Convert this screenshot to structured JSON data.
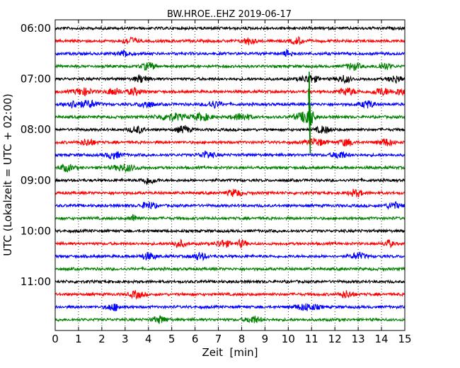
{
  "chart_data": {
    "type": "line",
    "title": "BW.HROE..EHZ 2019-06-17",
    "xlabel": "Zeit  [min]",
    "ylabel": "UTC (Lokalzeit = UTC + 02:00)",
    "xlim": [
      0,
      15
    ],
    "x_ticks": [
      0,
      1,
      2,
      3,
      4,
      5,
      6,
      7,
      8,
      9,
      10,
      11,
      12,
      13,
      14,
      15
    ],
    "y_tick_labels": [
      "06:00",
      "07:00",
      "08:00",
      "09:00",
      "10:00",
      "11:00"
    ],
    "grid": "vertical dotted",
    "trace_colors": [
      "#000000",
      "#ff0000",
      "#0000ff",
      "#008000"
    ],
    "series": [
      {
        "start": "06:00",
        "color": "#000000"
      },
      {
        "start": "06:15",
        "color": "#ff0000"
      },
      {
        "start": "06:30",
        "color": "#0000ff"
      },
      {
        "start": "06:45",
        "color": "#008000"
      },
      {
        "start": "07:00",
        "color": "#000000"
      },
      {
        "start": "07:15",
        "color": "#ff0000"
      },
      {
        "start": "07:30",
        "color": "#0000ff"
      },
      {
        "start": "07:45",
        "color": "#008000"
      },
      {
        "start": "08:00",
        "color": "#000000"
      },
      {
        "start": "08:15",
        "color": "#ff0000"
      },
      {
        "start": "08:30",
        "color": "#0000ff"
      },
      {
        "start": "08:45",
        "color": "#008000"
      },
      {
        "start": "09:00",
        "color": "#000000"
      },
      {
        "start": "09:15",
        "color": "#ff0000"
      },
      {
        "start": "09:30",
        "color": "#0000ff"
      },
      {
        "start": "09:45",
        "color": "#008000"
      },
      {
        "start": "10:00",
        "color": "#000000"
      },
      {
        "start": "10:15",
        "color": "#ff0000"
      },
      {
        "start": "10:30",
        "color": "#0000ff"
      },
      {
        "start": "10:45",
        "color": "#008000"
      },
      {
        "start": "11:00",
        "color": "#000000"
      },
      {
        "start": "11:15",
        "color": "#ff0000"
      },
      {
        "start": "11:30",
        "color": "#0000ff"
      },
      {
        "start": "11:45",
        "color": "#008000"
      }
    ],
    "annotations": [
      {
        "start": "07:45",
        "at_min": 10.9,
        "note": "event"
      }
    ]
  }
}
